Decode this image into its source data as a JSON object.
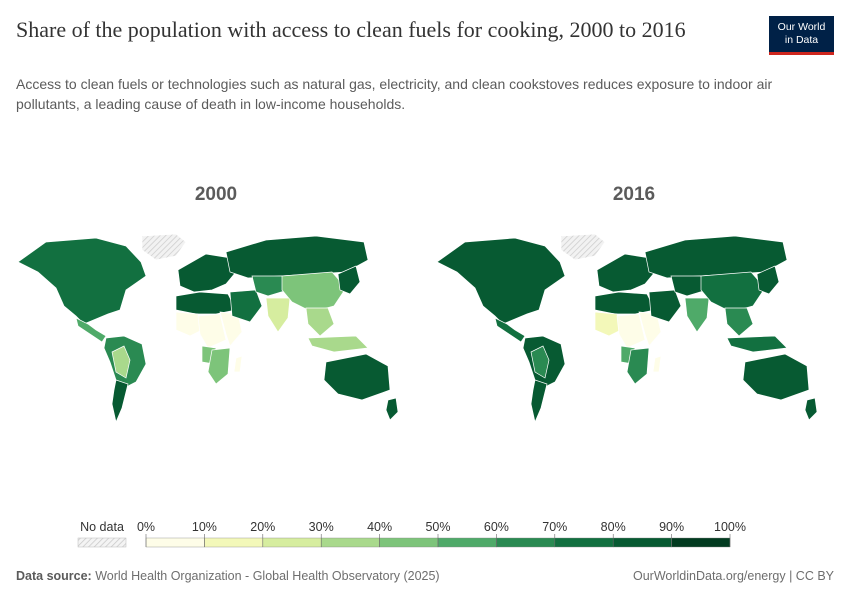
{
  "header": {
    "title": "Share of the population with access to clean fuels for cooking, 2000 to 2016",
    "subtitle": "Access to clean fuels or technologies such as natural gas, electricity, and clean cookstoves reduces exposure to indoor air pollutants, a leading cause of death in low-income households.",
    "logo_line1": "Our World",
    "logo_line2": "in Data"
  },
  "maps": [
    {
      "year": "2000",
      "regions": {
        "north_america": 7,
        "greenland": -1,
        "central_america": 5,
        "south_america": 6,
        "south_america_inner": 3,
        "chile_argentina": 8,
        "europe": 8,
        "russia": 8,
        "north_africa": 8,
        "west_africa": 0,
        "central_africa": 0,
        "east_africa": 0,
        "southern_africa": 4,
        "angola": 4,
        "madagascar": 0,
        "middle_east": 7,
        "central_asia": 6,
        "south_asia": 2,
        "china": 4,
        "southeast_asia": 3,
        "indonesia": 3,
        "japan_korea": 8,
        "australia": 8,
        "new_zealand": 8
      }
    },
    {
      "year": "2016",
      "regions": {
        "north_america": 8,
        "greenland": -1,
        "central_america": 7,
        "south_america": 8,
        "south_america_inner": 6,
        "chile_argentina": 8,
        "europe": 8,
        "russia": 8,
        "north_africa": 8,
        "west_africa": 1,
        "central_africa": 0,
        "east_africa": 0,
        "southern_africa": 6,
        "angola": 5,
        "madagascar": 0,
        "middle_east": 8,
        "central_asia": 8,
        "south_asia": 5,
        "china": 7,
        "southeast_asia": 6,
        "indonesia": 7,
        "japan_korea": 8,
        "australia": 8,
        "new_zealand": 8
      }
    }
  ],
  "legend": {
    "no_data_label": "No data",
    "ticks": [
      "0%",
      "10%",
      "20%",
      "30%",
      "40%",
      "50%",
      "60%",
      "70%",
      "80%",
      "90%",
      "100%"
    ],
    "colors": [
      "#fefde8",
      "#f3f8b9",
      "#d6ed9f",
      "#a9d98c",
      "#7dc47a",
      "#4faa69",
      "#2a8a52",
      "#127040",
      "#075a32",
      "#023b20"
    ],
    "no_data_color": "#e8e8e8"
  },
  "footer": {
    "source_label": "Data source:",
    "source_text": "World Health Organization - Global Health Observatory (2025)",
    "url_text": "OurWorldinData.org/energy | CC BY"
  }
}
